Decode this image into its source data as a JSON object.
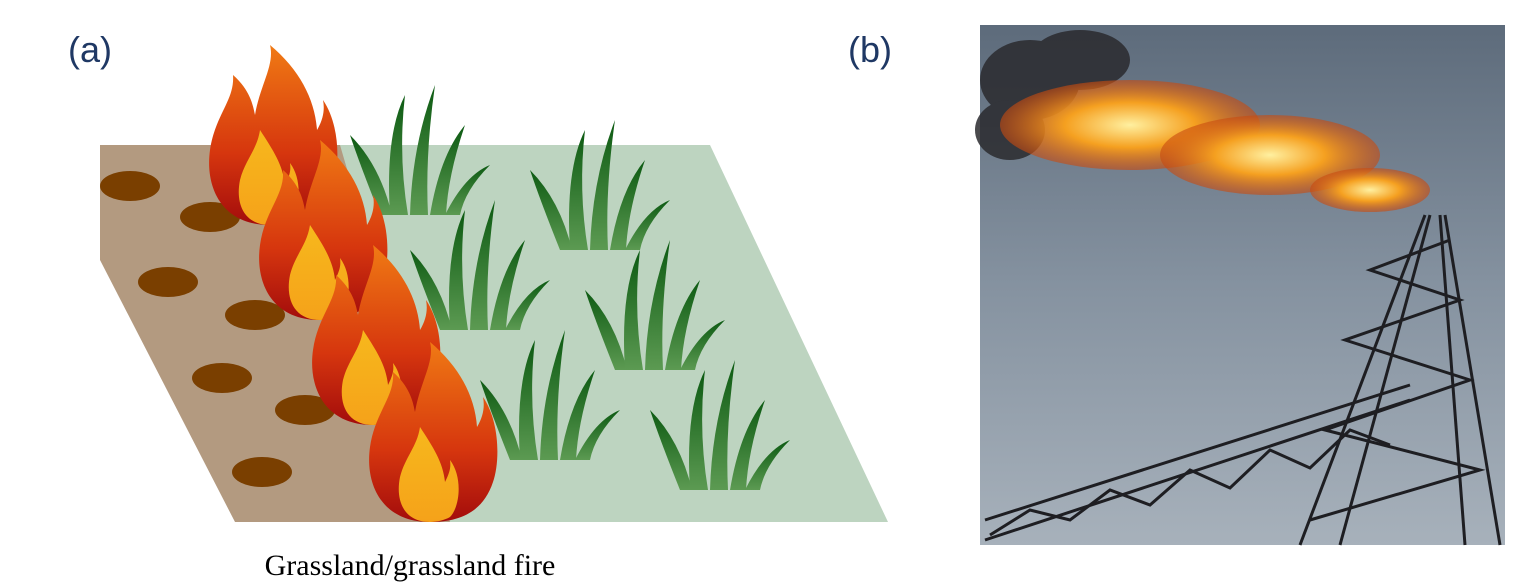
{
  "panels": [
    {
      "label": "(a)",
      "caption": "Grassland/grassland fire"
    },
    {
      "label": "(b)"
    }
  ]
}
